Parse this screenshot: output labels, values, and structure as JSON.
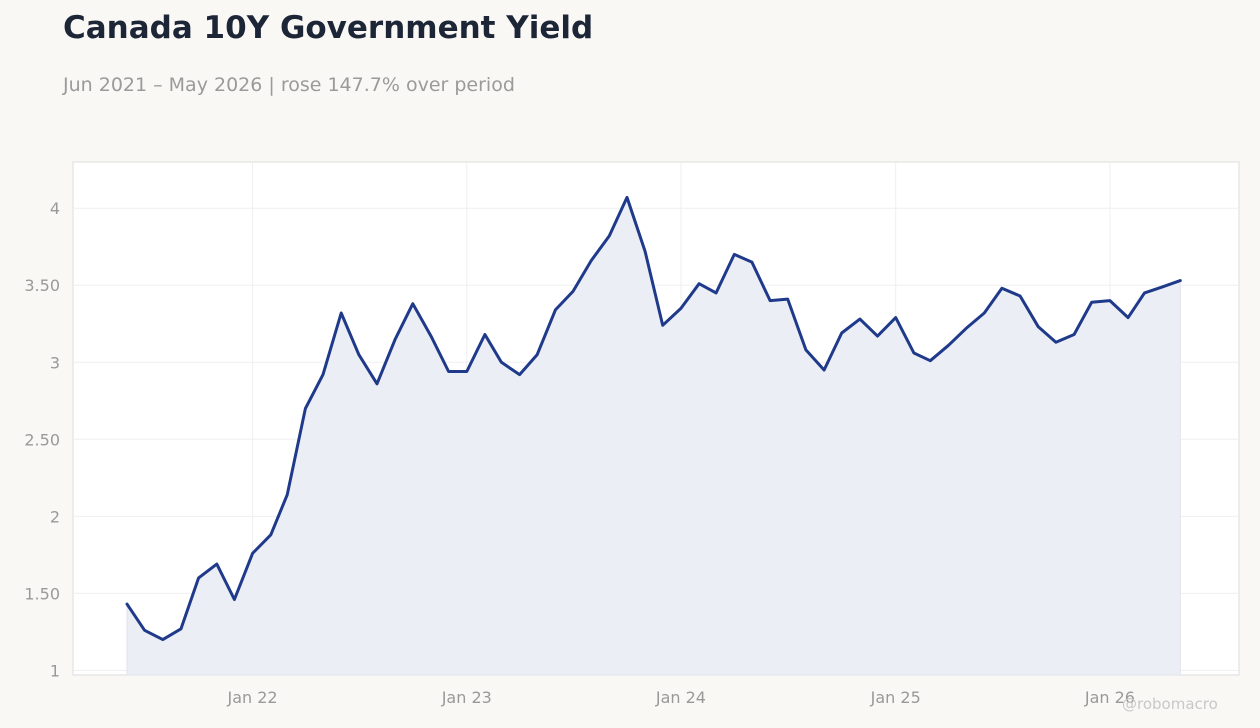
{
  "watermark": "@robomacro",
  "colors": {
    "line": "#1f3a8a",
    "fill": "#eceef5",
    "grid": "#efefef",
    "axis_text": "#999999",
    "background": "#f9f8f5",
    "plot_background": "#ffffff"
  },
  "chart_data": {
    "type": "area",
    "title": "Canada 10Y Government Yield",
    "subtitle": "Jun 2021 – May 2026 | rose 147.7% over period",
    "xlabel": "",
    "ylabel": "",
    "grid": true,
    "ylim": [
      0.97,
      4.3
    ],
    "xlim": [
      "2021-03-01",
      "2026-08-09"
    ],
    "y_ticks": [
      {
        "value": 1,
        "label": "1"
      },
      {
        "value": 1.5,
        "label": "1.50"
      },
      {
        "value": 2,
        "label": "2"
      },
      {
        "value": 2.5,
        "label": "2.50"
      },
      {
        "value": 3,
        "label": "3"
      },
      {
        "value": 3.5,
        "label": "3.50"
      },
      {
        "value": 4,
        "label": "4"
      }
    ],
    "x_ticks": [
      {
        "value": "2022-01-01",
        "label": "Jan 22"
      },
      {
        "value": "2023-01-01",
        "label": "Jan 23"
      },
      {
        "value": "2024-01-01",
        "label": "Jan 24"
      },
      {
        "value": "2025-01-01",
        "label": "Jan 25"
      },
      {
        "value": "2026-01-01",
        "label": "Jan 26"
      }
    ],
    "series": [
      {
        "dates": [
          "2021-06-01",
          "2021-07-01",
          "2021-08-01",
          "2021-09-01",
          "2021-10-01",
          "2021-11-01",
          "2021-12-01",
          "2022-01-01",
          "2022-02-01",
          "2022-03-01",
          "2022-04-01",
          "2022-05-01",
          "2022-06-01",
          "2022-07-01",
          "2022-08-01",
          "2022-09-01",
          "2022-10-01",
          "2022-11-01",
          "2022-12-01",
          "2023-01-01",
          "2023-02-01",
          "2023-03-01",
          "2023-04-01",
          "2023-05-01",
          "2023-06-01",
          "2023-07-01",
          "2023-08-01",
          "2023-09-01",
          "2023-10-01",
          "2023-11-01",
          "2023-12-01",
          "2024-01-01",
          "2024-02-01",
          "2024-03-01",
          "2024-04-01",
          "2024-05-01",
          "2024-06-01",
          "2024-07-01",
          "2024-08-01",
          "2024-09-01",
          "2024-10-01",
          "2024-11-01",
          "2024-12-01",
          "2025-01-01",
          "2025-02-01",
          "2025-03-01",
          "2025-04-01",
          "2025-05-01",
          "2025-06-01",
          "2025-07-01",
          "2025-08-01",
          "2025-09-01",
          "2025-10-01",
          "2025-11-01",
          "2025-12-01",
          "2026-01-01",
          "2026-02-01",
          "2026-03-01",
          "2026-04-01",
          "2026-05-01"
        ],
        "values": [
          1.43,
          1.26,
          1.2,
          1.27,
          1.6,
          1.69,
          1.46,
          1.76,
          1.88,
          2.14,
          2.7,
          2.92,
          3.32,
          3.05,
          2.86,
          3.15,
          3.38,
          3.17,
          2.94,
          2.94,
          3.18,
          3.0,
          2.92,
          3.05,
          3.34,
          3.46,
          3.66,
          3.82,
          4.07,
          3.72,
          3.24,
          3.35,
          3.51,
          3.45,
          3.7,
          3.65,
          3.4,
          3.41,
          3.08,
          2.95,
          3.19,
          3.28,
          3.17,
          3.29,
          3.06,
          3.01,
          3.11,
          3.22,
          3.32,
          3.48,
          3.43,
          3.23,
          3.13,
          3.18,
          3.39,
          3.4,
          3.29,
          3.45,
          3.49,
          3.53
        ]
      }
    ]
  }
}
